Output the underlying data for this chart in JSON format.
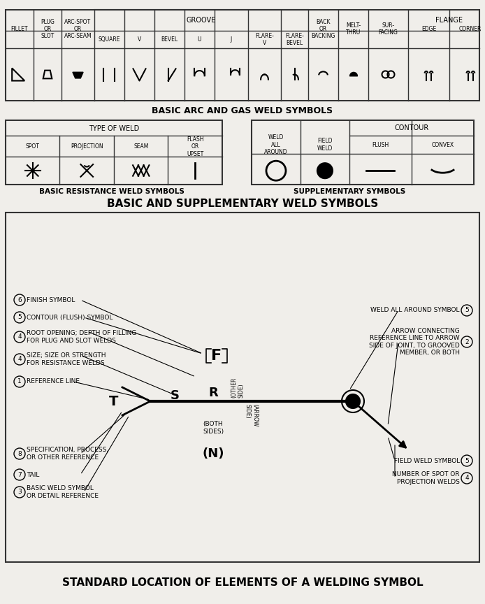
{
  "title_arc_gas": "BASIC ARC AND GAS WELD SYMBOLS",
  "title_resistance": "BASIC RESISTANCE WELD SYMBOLS",
  "title_supplementary": "SUPPLEMENTARY SYMBOLS",
  "title_basic_supp": "BASIC AND SUPPLEMENTARY WELD SYMBOLS",
  "title_standard": "STANDARD LOCATION OF ELEMENTS OF A WELDING SYMBOL",
  "bg_color": "#f0eeea",
  "table_bg": "#ffffff",
  "border_color": "#333333",
  "text_color": "#111111"
}
